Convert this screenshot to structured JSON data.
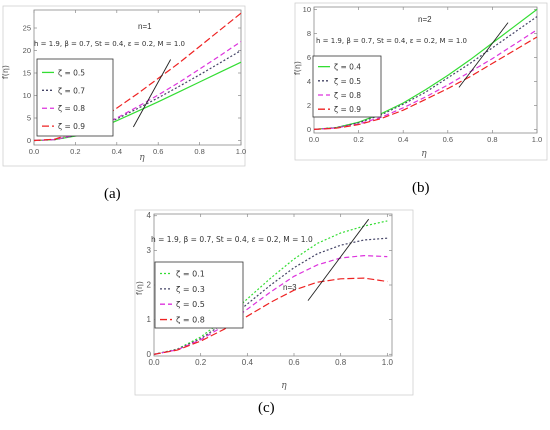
{
  "figure": {
    "labels": [
      "(a)",
      "(b)",
      "(c)"
    ]
  },
  "chart_data": [
    {
      "type": "line",
      "panel": "(a)",
      "n_label": "n=1",
      "params": "h = 1.9,  β = 0.7,  St = 0.4,  ε = 0.2,  M = 1.0",
      "xlabel": "η",
      "ylabel": "f(η)",
      "xlim": [
        0,
        1
      ],
      "ylim": [
        -1,
        29
      ],
      "x_ticks": [
        0.0,
        0.2,
        0.4,
        0.6,
        0.8,
        1.0
      ],
      "x_tick_labels": [
        "0.0",
        "0.2",
        "0.4",
        "0.6",
        "0.8",
        "1.0"
      ],
      "y_ticks": [
        0,
        5,
        10,
        15,
        20,
        25
      ],
      "y_tick_labels": [
        "0",
        "5",
        "10",
        "15",
        "20",
        "25"
      ],
      "legend_position": "left",
      "grid": false,
      "series": [
        {
          "name": "ζ = 0.5",
          "color": "#33dd33",
          "dash": "solid",
          "x": [
            0,
            0.1,
            0.2,
            0.3,
            0.4,
            0.5,
            0.6,
            0.7,
            0.8,
            0.9,
            1.0
          ],
          "y": [
            0,
            0.2,
            1.0,
            2.5,
            4.4,
            6.5,
            8.6,
            10.8,
            13.0,
            15.2,
            17.4
          ]
        },
        {
          "name": "ζ = 0.7",
          "color": "#444466",
          "dash": "dot",
          "x": [
            0,
            0.1,
            0.2,
            0.3,
            0.4,
            0.5,
            0.6,
            0.7,
            0.8,
            0.9,
            1.0
          ],
          "y": [
            0,
            0.2,
            1.1,
            2.7,
            4.8,
            7.1,
            9.5,
            12.0,
            14.6,
            17.3,
            20.0
          ]
        },
        {
          "name": "ζ = 0.8",
          "color": "#dd33dd",
          "dash": "dash",
          "x": [
            0,
            0.1,
            0.2,
            0.3,
            0.4,
            0.5,
            0.6,
            0.7,
            0.8,
            0.9,
            1.0
          ],
          "y": [
            0,
            0.2,
            1.2,
            2.9,
            5.0,
            7.5,
            10.1,
            12.9,
            15.9,
            18.9,
            22.0
          ]
        },
        {
          "name": "ζ = 0.9",
          "color": "#ee2222",
          "dash": "longdash",
          "x": [
            0,
            0.1,
            0.2,
            0.3,
            0.4,
            0.5,
            0.6,
            0.7,
            0.8,
            0.9,
            1.0
          ],
          "y": [
            0,
            0.3,
            1.8,
            4.2,
            7.2,
            10.4,
            13.8,
            17.2,
            20.9,
            24.6,
            28.3
          ]
        }
      ],
      "arrow_line": {
        "x": [
          0.48,
          0.66
        ],
        "y": [
          3.0,
          18.0
        ]
      }
    },
    {
      "type": "line",
      "panel": "(b)",
      "n_label": "n=2",
      "params": "h = 1.9,  β = 0.7,  St = 0.4,  ε = 0.2,  M = 1.0",
      "xlabel": "η",
      "ylabel": "f(η)",
      "xlim": [
        0,
        1
      ],
      "ylim": [
        -0.3,
        10.2
      ],
      "x_ticks": [
        0.0,
        0.2,
        0.4,
        0.6,
        0.8,
        1.0
      ],
      "x_tick_labels": [
        "0.0",
        "0.2",
        "0.4",
        "0.6",
        "0.8",
        "1.0"
      ],
      "y_ticks": [
        0,
        2,
        4,
        6,
        8,
        10
      ],
      "y_tick_labels": [
        "0",
        "2",
        "4",
        "6",
        "8",
        "10"
      ],
      "legend_position": "left",
      "grid": false,
      "series": [
        {
          "name": "ζ = 0.4",
          "color": "#33dd33",
          "dash": "solid",
          "x": [
            0,
            0.1,
            0.2,
            0.3,
            0.4,
            0.5,
            0.6,
            0.7,
            0.8,
            0.9,
            1.0
          ],
          "y": [
            0,
            0.15,
            0.6,
            1.3,
            2.2,
            3.3,
            4.5,
            5.8,
            7.2,
            8.6,
            10.0
          ]
        },
        {
          "name": "ζ = 0.5",
          "color": "#444466",
          "dash": "dot",
          "x": [
            0,
            0.1,
            0.2,
            0.3,
            0.4,
            0.5,
            0.6,
            0.7,
            0.8,
            0.9,
            1.0
          ],
          "y": [
            0,
            0.15,
            0.55,
            1.2,
            2.1,
            3.1,
            4.3,
            5.5,
            6.8,
            8.1,
            9.4
          ]
        },
        {
          "name": "ζ = 0.8",
          "color": "#dd33dd",
          "dash": "dash",
          "x": [
            0,
            0.1,
            0.2,
            0.3,
            0.4,
            0.5,
            0.6,
            0.7,
            0.8,
            0.9,
            1.0
          ],
          "y": [
            0,
            0.12,
            0.45,
            1.0,
            1.8,
            2.7,
            3.7,
            4.8,
            5.9,
            7.1,
            8.3
          ]
        },
        {
          "name": "ζ = 0.9",
          "color": "#ee2222",
          "dash": "longdash",
          "x": [
            0,
            0.1,
            0.2,
            0.3,
            0.4,
            0.5,
            0.6,
            0.7,
            0.8,
            0.9,
            1.0
          ],
          "y": [
            0,
            0.1,
            0.4,
            0.9,
            1.6,
            2.5,
            3.4,
            4.4,
            5.5,
            6.6,
            7.7
          ]
        }
      ],
      "arrow_line": {
        "x": [
          0.65,
          0.87
        ],
        "y": [
          3.5,
          8.9
        ]
      }
    },
    {
      "type": "line",
      "panel": "(c)",
      "n_label": "n=3",
      "params": "h = 1.9,  β = 0.7,  St = 0.4,  ε = 0.2,  M = 1.0",
      "xlabel": "η",
      "ylabel": "f(η)",
      "xlim": [
        0,
        1.02
      ],
      "ylim": [
        -0.05,
        4.05
      ],
      "x_ticks": [
        0.0,
        0.2,
        0.4,
        0.6,
        0.8,
        1.0
      ],
      "x_tick_labels": [
        "0.0",
        "0.2",
        "0.4",
        "0.6",
        "0.8",
        "1.0"
      ],
      "y_ticks": [
        0,
        1,
        2,
        3,
        4
      ],
      "y_tick_labels": [
        "0",
        "1",
        "2",
        "3",
        "4"
      ],
      "legend_position": "left",
      "grid": false,
      "series": [
        {
          "name": "ζ = 0.1",
          "color": "#33dd33",
          "dash": "dot",
          "x": [
            0,
            0.1,
            0.2,
            0.3,
            0.4,
            0.5,
            0.6,
            0.7,
            0.8,
            0.9,
            1.0
          ],
          "y": [
            0,
            0.15,
            0.5,
            1.0,
            1.6,
            2.2,
            2.75,
            3.2,
            3.5,
            3.7,
            3.85
          ]
        },
        {
          "name": "ζ = 0.3",
          "color": "#444466",
          "dash": "dot",
          "x": [
            0,
            0.1,
            0.2,
            0.3,
            0.4,
            0.5,
            0.6,
            0.7,
            0.8,
            0.9,
            1.0
          ],
          "y": [
            0,
            0.14,
            0.45,
            0.9,
            1.45,
            2.0,
            2.5,
            2.9,
            3.15,
            3.3,
            3.35
          ]
        },
        {
          "name": "ζ = 0.5",
          "color": "#dd33dd",
          "dash": "dash",
          "x": [
            0,
            0.1,
            0.2,
            0.3,
            0.4,
            0.5,
            0.6,
            0.7,
            0.8,
            0.9,
            1.0
          ],
          "y": [
            0,
            0.13,
            0.42,
            0.82,
            1.3,
            1.8,
            2.25,
            2.58,
            2.78,
            2.85,
            2.82
          ]
        },
        {
          "name": "ζ = 0.8",
          "color": "#ee2222",
          "dash": "longdash",
          "x": [
            0,
            0.1,
            0.2,
            0.3,
            0.4,
            0.5,
            0.6,
            0.7,
            0.8,
            0.9,
            1.0
          ],
          "y": [
            0,
            0.12,
            0.38,
            0.72,
            1.1,
            1.5,
            1.85,
            2.08,
            2.18,
            2.2,
            2.1
          ]
        }
      ],
      "arrow_line": {
        "x": [
          0.66,
          0.92
        ],
        "y": [
          1.55,
          3.9
        ]
      }
    }
  ]
}
